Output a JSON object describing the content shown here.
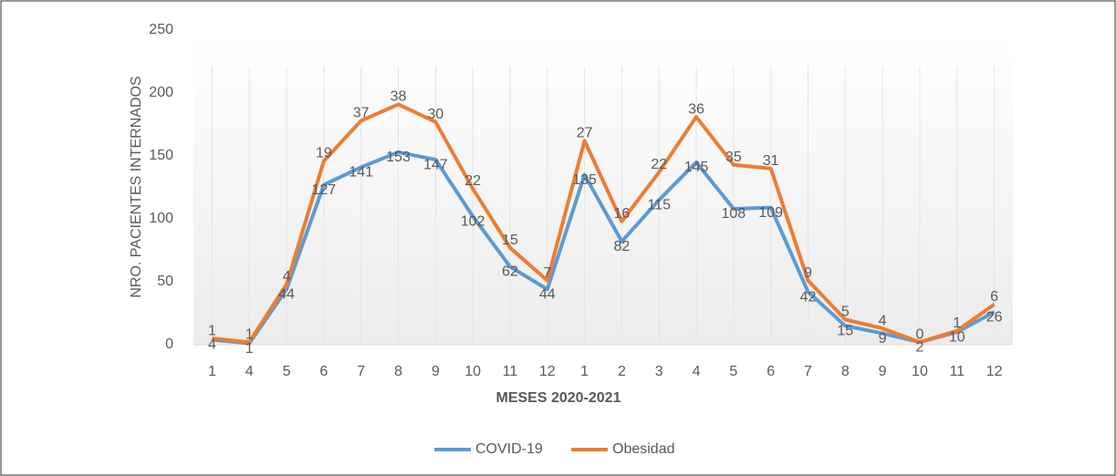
{
  "chart_data": {
    "type": "line",
    "stacked": true,
    "y_label": "NRO. PACIENTES INTERNADOS",
    "x_label": "MESES 2020-2021",
    "categories": [
      "1",
      "4",
      "5",
      "6",
      "7",
      "8",
      "9",
      "10",
      "11",
      "12",
      "1",
      "2",
      "3",
      "4",
      "5",
      "6",
      "7",
      "8",
      "9",
      "10",
      "11",
      "12"
    ],
    "series": [
      {
        "name": "COVID-19",
        "color": "#5b9bd5",
        "values": [
          4,
          1,
          44,
          127,
          141,
          153,
          147,
          102,
          62,
          44,
          135,
          82,
          115,
          145,
          108,
          109,
          42,
          15,
          9,
          2,
          10,
          26
        ]
      },
      {
        "name": "Obesidad",
        "color": "#ed7d31",
        "values": [
          1,
          1,
          4,
          19,
          37,
          38,
          30,
          22,
          15,
          7,
          27,
          16,
          22,
          36,
          35,
          31,
          9,
          5,
          4,
          0,
          1,
          6
        ]
      }
    ],
    "ylim": [
      0,
      250
    ],
    "yticks": [
      0,
      50,
      100,
      150,
      200,
      250
    ],
    "grid": true,
    "legend": "bottom"
  }
}
